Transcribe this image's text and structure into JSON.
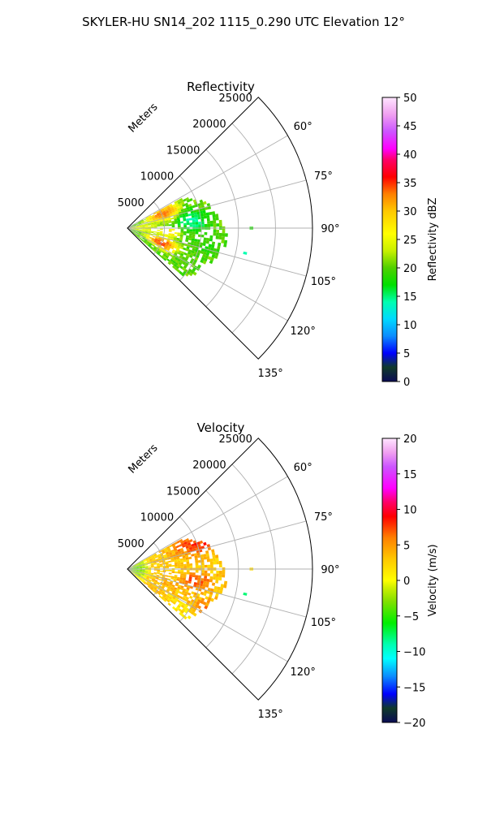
{
  "figure": {
    "title": "SKYLER-HU  SN14_202  1115_0.290 UTC Elevation 12°"
  },
  "colors": {
    "grid": "#b0b0b0",
    "frame": "#000000",
    "background": "#ffffff"
  },
  "chart_data": [
    {
      "type": "heatmap",
      "projection": "polar-sector",
      "title": "Reflectivity",
      "range_axis_label": "Meters",
      "range_ticks": [
        5000,
        10000,
        15000,
        20000,
        25000
      ],
      "range_tick_labels": [
        "5000",
        "10000",
        "15000",
        "20000",
        "25000"
      ],
      "rlim": [
        0,
        25000
      ],
      "azimuth_range_deg": [
        45,
        135
      ],
      "azimuth_ticks": [
        60,
        75,
        90,
        105,
        120,
        135
      ],
      "azimuth_tick_labels": [
        "60°",
        "75°",
        "90°",
        "105°",
        "120°",
        "135°"
      ],
      "grid": true,
      "data_extent": {
        "azimuth_deg": [
          61,
          131
        ],
        "range_m": [
          0,
          13500
        ]
      },
      "colorbar": {
        "label": "Reflectivity dBZ",
        "vmin": 0,
        "vmax": 50,
        "ticks": [
          0,
          5,
          10,
          15,
          20,
          25,
          30,
          35,
          40,
          45,
          50
        ],
        "tick_labels": [
          "0",
          "5",
          "10",
          "15",
          "20",
          "25",
          "30",
          "35",
          "40",
          "45",
          "50"
        ],
        "stops": [
          [
            0,
            "#0b0b55"
          ],
          [
            2.5,
            "#0f3a2a"
          ],
          [
            5,
            "#0000ff"
          ],
          [
            8,
            "#0b8cff"
          ],
          [
            11,
            "#00d9ff"
          ],
          [
            14,
            "#00ffb0"
          ],
          [
            17,
            "#00e000"
          ],
          [
            20,
            "#50d000"
          ],
          [
            23,
            "#c8f000"
          ],
          [
            26,
            "#ffff00"
          ],
          [
            30,
            "#ffc800"
          ],
          [
            33,
            "#ff8000"
          ],
          [
            36,
            "#ff0000"
          ],
          [
            39,
            "#ff0066"
          ],
          [
            41,
            "#ff00ff"
          ],
          [
            44,
            "#cc55ff"
          ],
          [
            47,
            "#f0a0f0"
          ],
          [
            50,
            "#ffe6ff"
          ]
        ]
      },
      "cells": [
        {
          "az": 68,
          "r": 5200,
          "w_az": 14,
          "w_r": 3200,
          "value": 36
        },
        {
          "az": 113,
          "r": 5000,
          "w_az": 12,
          "w_r": 3000,
          "value": 38
        },
        {
          "az": 96,
          "r": 5600,
          "w_az": 8,
          "w_r": 2200,
          "value": 30
        },
        {
          "az": 82,
          "r": 9000,
          "w_az": 14,
          "w_r": 3000,
          "value": 13
        },
        {
          "az": 100,
          "r": 10500,
          "w_az": 10,
          "w_r": 3000,
          "value": 18
        },
        {
          "az": 122,
          "r": 10500,
          "w_az": 14,
          "w_r": 4500,
          "value": 20
        },
        {
          "az": 70,
          "r": 10800,
          "w_az": 16,
          "w_r": 4000,
          "value": 21
        },
        {
          "az": 90,
          "r": 2200,
          "w_az": 20,
          "w_r": 3000,
          "value": 26
        },
        {
          "az": 90,
          "r": 16500,
          "w_az": 1,
          "w_r": 300,
          "value": 18
        },
        {
          "az": 102,
          "r": 16000,
          "w_az": 1,
          "w_r": 300,
          "value": 14
        }
      ],
      "background_value": 20
    },
    {
      "type": "heatmap",
      "projection": "polar-sector",
      "title": "Velocity",
      "range_axis_label": "Meters",
      "range_ticks": [
        5000,
        10000,
        15000,
        20000,
        25000
      ],
      "range_tick_labels": [
        "5000",
        "10000",
        "15000",
        "20000",
        "25000"
      ],
      "rlim": [
        0,
        25000
      ],
      "azimuth_range_deg": [
        45,
        135
      ],
      "azimuth_ticks": [
        60,
        75,
        90,
        105,
        120,
        135
      ],
      "azimuth_tick_labels": [
        "60°",
        "75°",
        "90°",
        "105°",
        "120°",
        "135°"
      ],
      "grid": true,
      "data_extent": {
        "azimuth_deg": [
          61,
          131
        ],
        "range_m": [
          0,
          13500
        ]
      },
      "colorbar": {
        "label": "Velocity (m/s)",
        "vmin": -20,
        "vmax": 20,
        "ticks": [
          -20,
          -15,
          -10,
          -5,
          0,
          5,
          10,
          15,
          20
        ],
        "tick_labels": [
          "−20",
          "−15",
          "−10",
          "−5",
          "0",
          "5",
          "10",
          "15",
          "20"
        ],
        "stops": [
          [
            -20,
            "#0b0b55"
          ],
          [
            -18,
            "#0f3a2a"
          ],
          [
            -16,
            "#0000ff"
          ],
          [
            -13.5,
            "#0b8cff"
          ],
          [
            -11,
            "#00ffff"
          ],
          [
            -9,
            "#00ffb0"
          ],
          [
            -6,
            "#00ee00"
          ],
          [
            -3,
            "#80e000"
          ],
          [
            -1,
            "#d0f000"
          ],
          [
            0,
            "#ffff00"
          ],
          [
            3,
            "#ffc800"
          ],
          [
            6,
            "#ff8000"
          ],
          [
            9,
            "#ff0000"
          ],
          [
            11,
            "#ff0066"
          ],
          [
            13,
            "#ff00ff"
          ],
          [
            16,
            "#cc55ff"
          ],
          [
            18,
            "#f0a0f0"
          ],
          [
            20,
            "#ffe6ff"
          ]
        ]
      },
      "cells": [
        {
          "az": 90,
          "r": 1300,
          "w_az": 60,
          "w_r": 2200,
          "value": -5
        },
        {
          "az": 68,
          "r": 10500,
          "w_az": 14,
          "w_r": 5000,
          "value": 9
        },
        {
          "az": 100,
          "r": 9500,
          "w_az": 10,
          "w_r": 3000,
          "value": 8
        },
        {
          "az": 118,
          "r": 12000,
          "w_az": 10,
          "w_r": 3000,
          "value": 6
        },
        {
          "az": 126,
          "r": 9000,
          "w_az": 8,
          "w_r": 4000,
          "value": 1
        },
        {
          "az": 110,
          "r": 5500,
          "w_az": 12,
          "w_r": 3000,
          "value": 4
        },
        {
          "az": 90,
          "r": 16500,
          "w_az": 1,
          "w_r": 300,
          "value": 2
        },
        {
          "az": 102,
          "r": 16000,
          "w_az": 1,
          "w_r": 300,
          "value": -8
        }
      ],
      "background_value": 3
    }
  ]
}
